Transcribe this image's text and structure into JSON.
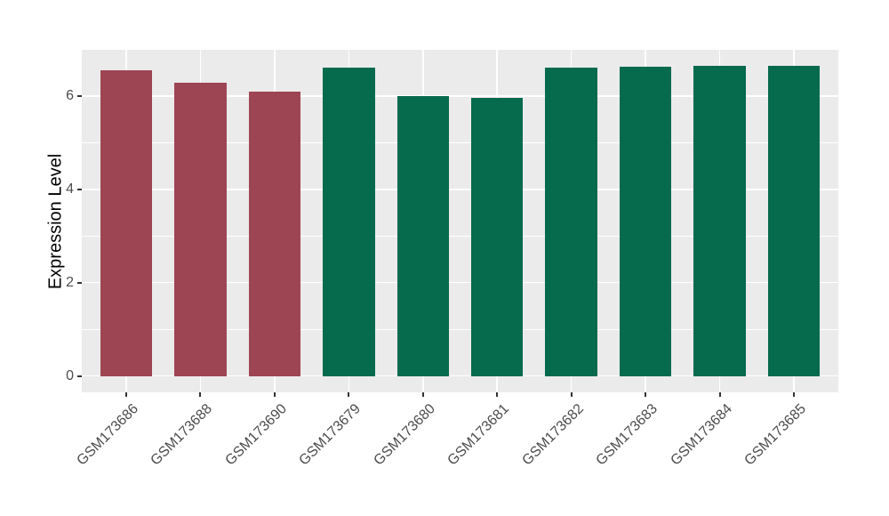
{
  "chart_data": {
    "type": "bar",
    "title": "",
    "xlabel": "",
    "ylabel": "Expression Level",
    "categories": [
      "GSM173686",
      "GSM173688",
      "GSM173690",
      "GSM173679",
      "GSM173680",
      "GSM173681",
      "GSM173682",
      "GSM173683",
      "GSM173684",
      "GSM173685"
    ],
    "values": [
      6.55,
      6.28,
      6.1,
      6.6,
      6.0,
      5.96,
      6.61,
      6.63,
      6.65,
      6.65
    ],
    "bar_colors": [
      "#9D4552",
      "#9D4552",
      "#9D4552",
      "#066A4D",
      "#066A4D",
      "#066A4D",
      "#066A4D",
      "#066A4D",
      "#066A4D",
      "#066A4D"
    ],
    "group_colors": {
      "red_group": "#9D4552",
      "green_group": "#066A4D"
    },
    "yticks": [
      0,
      2,
      4,
      6
    ],
    "ytick_labels": [
      "0",
      "2",
      "4",
      "6"
    ],
    "yticks_minor": [
      1,
      3,
      5
    ],
    "ylim": [
      -0.35,
      6.99
    ],
    "bar_width_fraction": 0.7,
    "legend": "none",
    "grid": "on",
    "colors": {
      "panel_background": "#EBEBEB",
      "figure_background": "#FFFFFF",
      "grid_major": "#FFFFFF",
      "grid_minor": "#FFFFFF",
      "tick_mark": "#333333",
      "tick_label_text": "#4D4D4D",
      "axis_title_text": "#000000"
    }
  }
}
